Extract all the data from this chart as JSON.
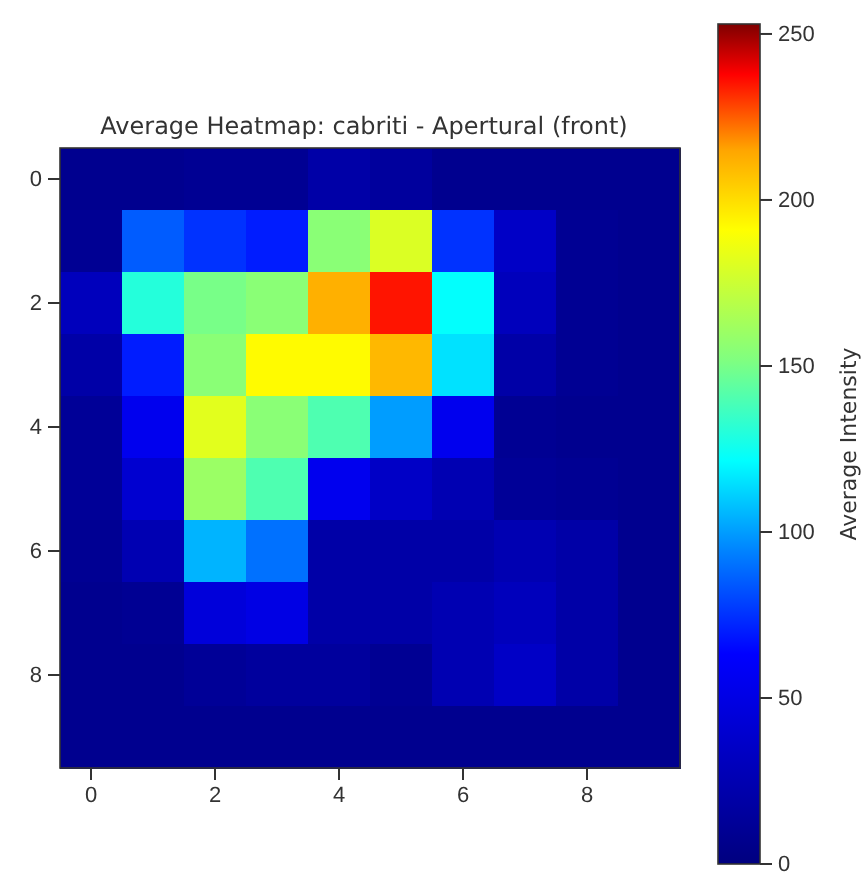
{
  "chart_data": {
    "type": "heatmap",
    "title": "Average Heatmap: cabriti - Apertural (front)",
    "clabel": "Average Intensity",
    "categories": [
      "0",
      null,
      "2",
      null,
      "4",
      null,
      "6",
      null,
      "8",
      null
    ],
    "y_categories": [
      "0",
      null,
      "2",
      null,
      "4",
      null,
      "6",
      null,
      "8",
      null
    ],
    "cells": [
      [
        8,
        8,
        10,
        10,
        20,
        15,
        8,
        8,
        8,
        8
      ],
      [
        10,
        85,
        75,
        70,
        155,
        180,
        75,
        35,
        10,
        8
      ],
      [
        30,
        130,
        150,
        155,
        212,
        235,
        122,
        30,
        10,
        8
      ],
      [
        20,
        70,
        155,
        192,
        192,
        210,
        115,
        20,
        10,
        8
      ],
      [
        12,
        55,
        182,
        155,
        140,
        100,
        55,
        10,
        8,
        8
      ],
      [
        12,
        40,
        160,
        140,
        55,
        35,
        25,
        12,
        10,
        8
      ],
      [
        10,
        25,
        105,
        90,
        20,
        20,
        20,
        25,
        20,
        8
      ],
      [
        8,
        10,
        45,
        50,
        20,
        20,
        25,
        30,
        20,
        8
      ],
      [
        8,
        8,
        12,
        15,
        15,
        10,
        25,
        35,
        20,
        8
      ],
      [
        8,
        8,
        8,
        8,
        8,
        8,
        8,
        8,
        8,
        8
      ]
    ],
    "clim": [
      0,
      253
    ],
    "cticks": [
      0,
      50,
      100,
      150,
      200,
      250
    ]
  }
}
